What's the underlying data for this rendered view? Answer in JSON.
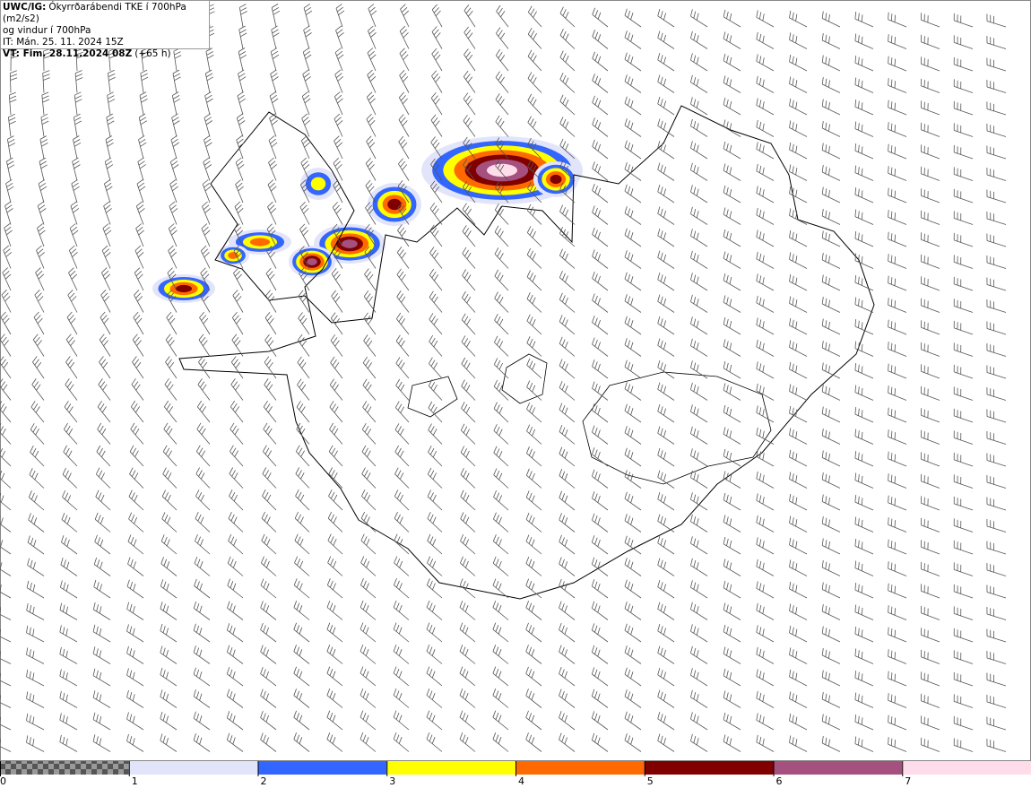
{
  "header": {
    "lines": [
      {
        "bold": "UWC/IG:",
        "text": "Ókyrrðarábendi TKE í 700hPa (m2/s2)"
      },
      {
        "text": "og vindur í 700hPa"
      },
      {
        "text": "IT: Mán. 25. 11. 2024 15Z"
      },
      {
        "bold": "VT: Fim. 28.11.2024 08Z",
        "text": "(+65 h)"
      }
    ]
  },
  "colorbar": {
    "ticks": [
      0,
      1,
      2,
      3,
      4,
      5,
      6,
      7
    ],
    "colors": [
      "#e2e4fa",
      "#3366ff",
      "#ffff00",
      "#ff6a00",
      "#800000",
      "#a5507f",
      "#ffdcea"
    ]
  }
}
